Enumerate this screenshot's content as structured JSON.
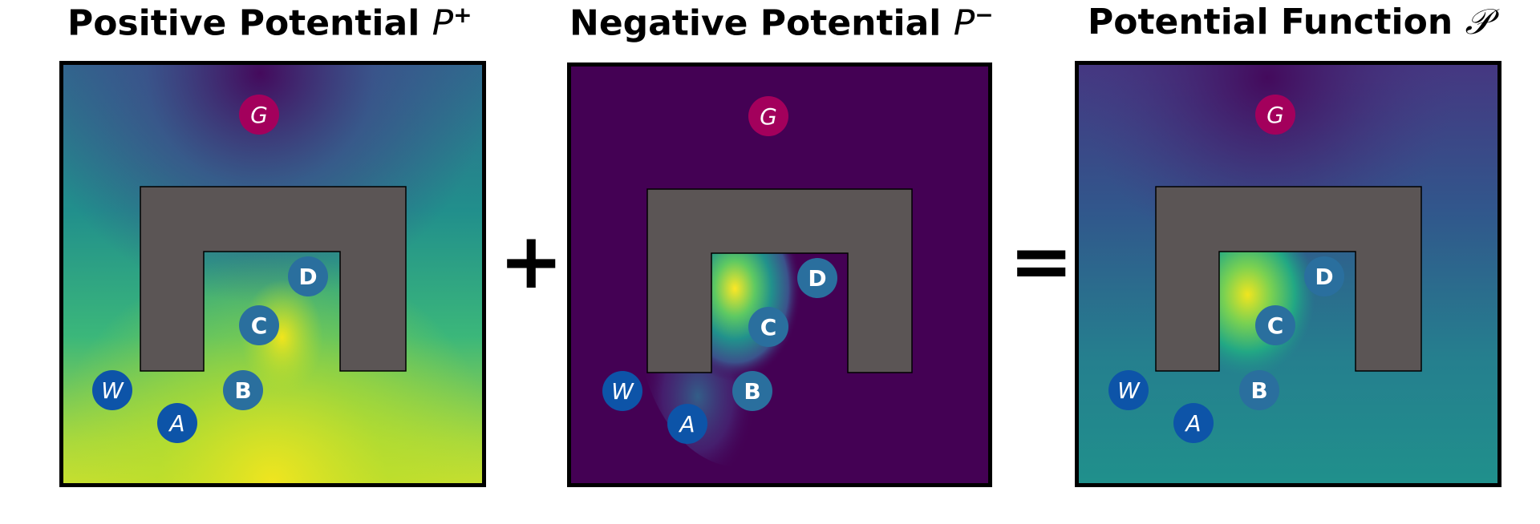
{
  "panels": [
    {
      "title": "Positive Potential",
      "symbol": "P",
      "sup": "+",
      "nodes": [
        "G",
        "D",
        "C",
        "B",
        "W",
        "A"
      ]
    },
    {
      "title": "Negative Potential",
      "symbol": "P",
      "sup": "−",
      "nodes": [
        "G",
        "D",
        "C",
        "B",
        "W",
        "A"
      ]
    },
    {
      "title": "Potential Function",
      "symbol": "𝒫",
      "sup": "",
      "nodes": [
        "G",
        "D",
        "C",
        "B",
        "W",
        "A"
      ]
    }
  ],
  "operators": {
    "plus": "+",
    "equals": "="
  },
  "colors": {
    "goal_node": "#a3005c",
    "state_node": "#2a6f9e",
    "entry_node": "#0d54a8",
    "obstacle": "#5b5555",
    "node_text": "#ffffff"
  }
}
